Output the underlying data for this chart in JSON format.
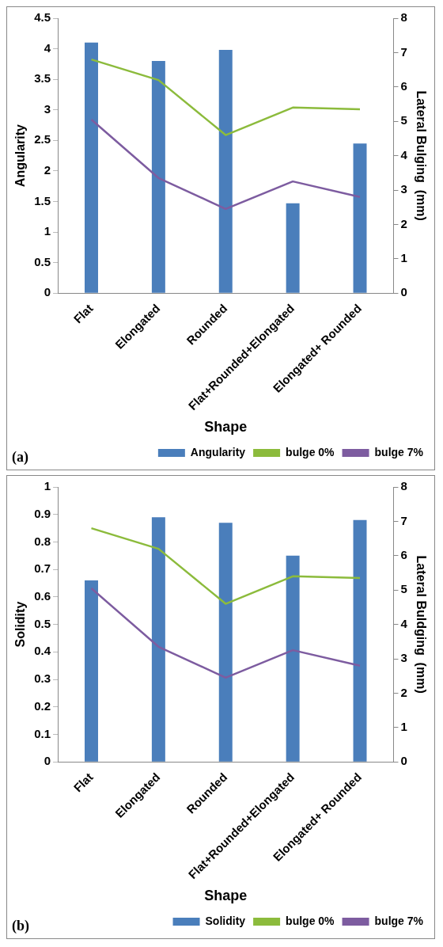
{
  "chart_data": [
    {
      "type": "bar",
      "categories": [
        "Flat",
        "Elongated",
        "Rounded",
        "Flat+Rounded+Elongated",
        "Elongated+ Rounded"
      ],
      "xlabel": "Shape",
      "ylabel": "Angularity",
      "y2label": "Lateral Bulging  (mm)",
      "annotations": [
        "(a)"
      ],
      "series": [
        {
          "name": "Angularity",
          "color": "#4a7ebb",
          "values": [
            4.1,
            3.8,
            3.98,
            1.47,
            2.45
          ]
        },
        {
          "name": "bulge 0%",
          "type": "line",
          "axis": "y2",
          "color": "#8cbb3c",
          "values": [
            6.8,
            6.2,
            4.6,
            5.4,
            5.35
          ]
        },
        {
          "name": "bulge 7%",
          "type": "line",
          "axis": "y2",
          "color": "#7d5ca0",
          "values": [
            5.05,
            3.35,
            2.45,
            3.25,
            2.8
          ]
        }
      ],
      "ylim": [
        0,
        4.5
      ],
      "yticks": [
        0,
        0.5,
        1,
        1.5,
        2,
        2.5,
        3,
        3.5,
        4,
        4.5
      ],
      "y2lim": [
        0,
        8
      ],
      "y2ticks": [
        0,
        1,
        2,
        3,
        4,
        5,
        6,
        7,
        8
      ],
      "grid": false,
      "legend": "bottom right",
      "marker": "none"
    },
    {
      "type": "bar",
      "categories": [
        "Flat",
        "Elongated",
        "Rounded",
        "Flat+Rounded+Elongated",
        "Elongated+ Rounded"
      ],
      "xlabel": "Shape",
      "ylabel": "Solidity",
      "y2label": "Lateral Buldging  (mm)",
      "annotations": [
        "(b)"
      ],
      "series": [
        {
          "name": "Solidity",
          "color": "#4a7ebb",
          "values": [
            0.66,
            0.89,
            0.87,
            0.75,
            0.88
          ]
        },
        {
          "name": "bulge 0%",
          "type": "line",
          "axis": "y2",
          "color": "#8cbb3c",
          "values": [
            6.8,
            6.2,
            4.6,
            5.4,
            5.35
          ]
        },
        {
          "name": "bulge 7%",
          "type": "line",
          "axis": "y2",
          "color": "#7d5ca0",
          "values": [
            5.05,
            3.35,
            2.45,
            3.25,
            2.8
          ]
        }
      ],
      "ylim": [
        0,
        1
      ],
      "yticks": [
        0,
        0.1,
        0.2,
        0.3,
        0.4,
        0.5,
        0.6,
        0.7,
        0.8,
        0.9,
        1
      ],
      "y2lim": [
        0,
        8
      ],
      "y2ticks": [
        0,
        1,
        2,
        3,
        4,
        5,
        6,
        7,
        8
      ],
      "grid": false,
      "legend": "bottom right",
      "marker": "none"
    }
  ]
}
